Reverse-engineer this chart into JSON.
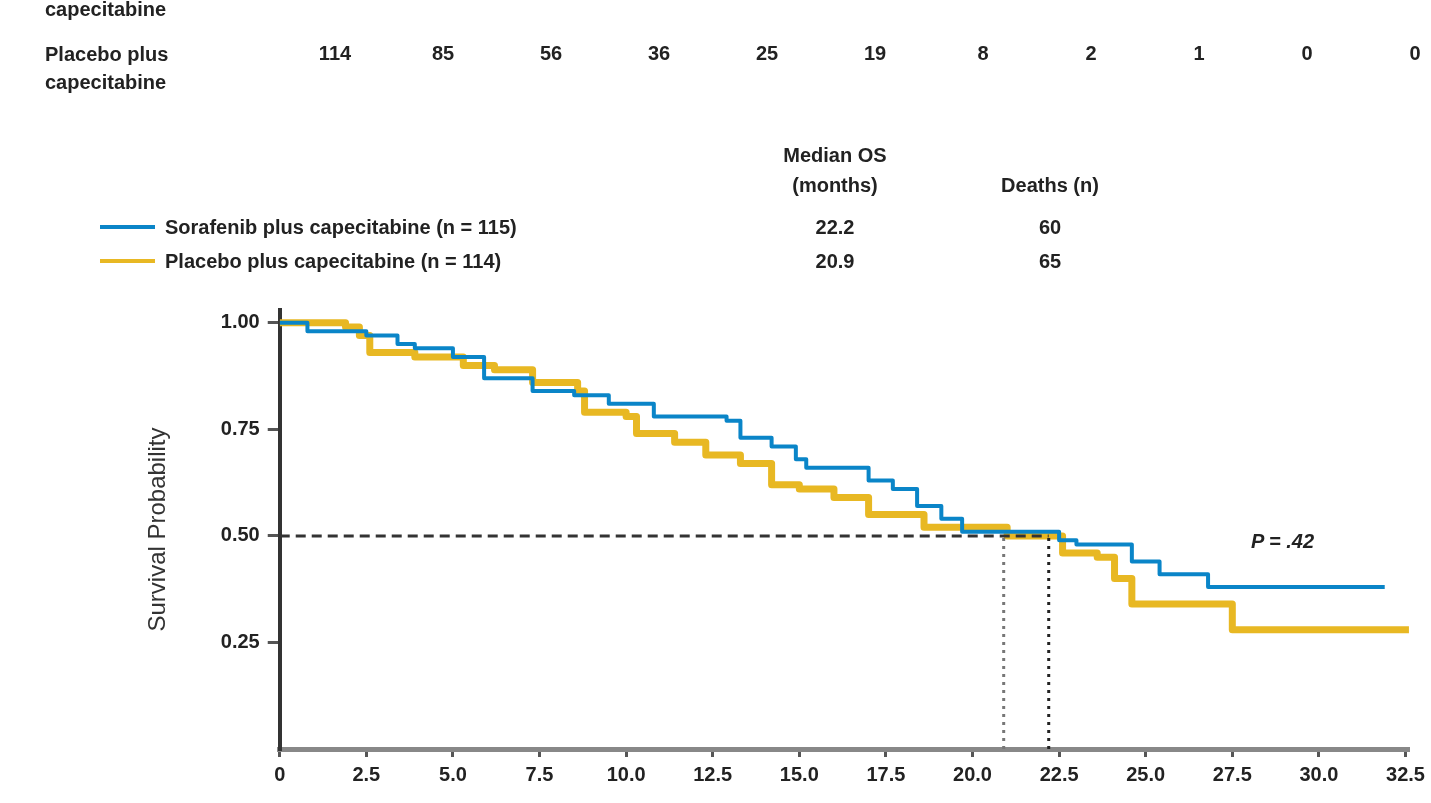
{
  "chart_data": {
    "type": "step",
    "ylabel": "Survival Probability",
    "xlim": [
      0,
      32.6
    ],
    "ylim": [
      0,
      1.03
    ],
    "xticks": [
      {
        "value": 0,
        "label": "0"
      },
      2.5,
      {
        "value": 5,
        "label": "5.0"
      },
      7.5,
      {
        "value": 10,
        "label": "10.0"
      },
      12.5,
      {
        "value": 15,
        "label": "15.0"
      },
      17.5,
      {
        "value": 20,
        "label": "20.0"
      },
      22.5,
      {
        "value": 25,
        "label": "25.0"
      },
      27.5,
      {
        "value": 30,
        "label": "30.0"
      },
      32.5
    ],
    "yticks": [
      0.25,
      {
        "value": 0.5,
        "label": "0.50"
      },
      0.75,
      {
        "value": 1,
        "label": "1.00"
      }
    ],
    "legend": "top",
    "series": [
      {
        "name": "Sorafenib plus capecitabine  (n = 115)",
        "color": "#0a85c8",
        "x": [
          0,
          0.8,
          2.5,
          3.4,
          3.9,
          5.0,
          5.9,
          7.3,
          8.5,
          9.5,
          10.8,
          12.9,
          13.3,
          14.2,
          14.9,
          15.2,
          17.0,
          17.7,
          18.4,
          19.1,
          19.7,
          22.5,
          23.0,
          24.6,
          25.4,
          26.8,
          31.9
        ],
        "values": [
          1,
          0.98,
          0.97,
          0.95,
          0.94,
          0.92,
          0.87,
          0.84,
          0.83,
          0.81,
          0.78,
          0.77,
          0.73,
          0.71,
          0.68,
          0.66,
          0.63,
          0.61,
          0.57,
          0.54,
          0.51,
          0.49,
          0.48,
          0.44,
          0.41,
          0.38,
          0.38
        ]
      },
      {
        "name": "Placebo plus capecitabine  (n = 114)",
        "color": "#e8b823",
        "x": [
          0,
          1.9,
          2.3,
          2.6,
          3.9,
          5.3,
          6.2,
          7.3,
          8.6,
          8.8,
          10.0,
          10.3,
          11.4,
          12.3,
          13.3,
          14.2,
          15.0,
          16.0,
          17.0,
          18.6,
          21.0,
          22.6,
          23.6,
          24.1,
          24.6,
          27.5,
          32.6
        ],
        "values": [
          1,
          0.99,
          0.97,
          0.93,
          0.92,
          0.9,
          0.89,
          0.86,
          0.84,
          0.79,
          0.78,
          0.74,
          0.72,
          0.69,
          0.67,
          0.62,
          0.61,
          0.59,
          0.55,
          0.52,
          0.5,
          0.46,
          0.45,
          0.4,
          0.34,
          0.28,
          0.28
        ]
      }
    ],
    "ref_lines": [
      {
        "axis": "y",
        "value": 0.5,
        "line_style": "dashed",
        "color": "#333333"
      },
      {
        "axis": "x",
        "value": 20.9,
        "line_style": "dotted",
        "color": "#777777"
      },
      {
        "axis": "x",
        "value": 22.2,
        "line_style": "dotted",
        "color": "#222222"
      }
    ],
    "annotations": [
      "capecitabine",
      "Placebo plus capecitabine",
      "114",
      "85",
      "56",
      "36",
      "25",
      "19",
      "8",
      "2",
      "1",
      "0",
      "0",
      "Median OS (months)",
      "Deaths (n)",
      "22.2",
      "60",
      "20.9",
      "65",
      "P = .42"
    ]
  }
}
